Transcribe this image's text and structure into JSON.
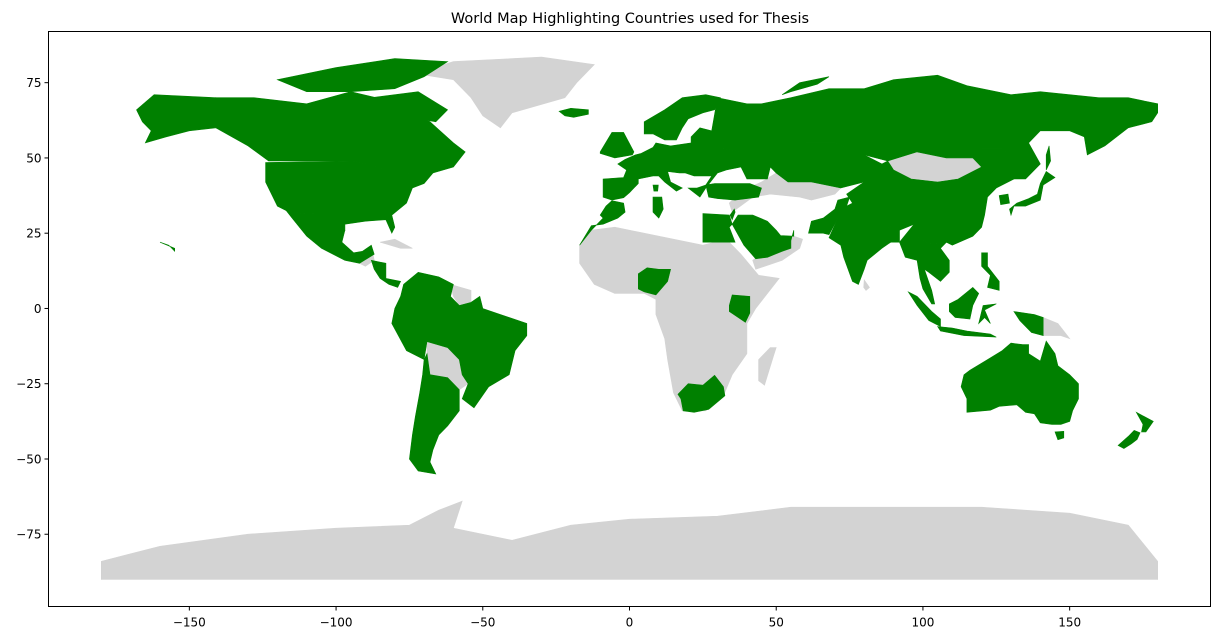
{
  "chart_data": {
    "type": "choropleth-map",
    "title": "World Map Highlighting Countries used for Thesis",
    "xlabel": "",
    "ylabel": "",
    "xlim": [
      -198,
      198
    ],
    "ylim": [
      -99,
      92
    ],
    "xticks": [
      -150,
      -100,
      -50,
      0,
      50,
      100,
      150
    ],
    "yticks": [
      75,
      50,
      25,
      0,
      -25,
      -50,
      -75
    ],
    "grid": false,
    "legend": "none",
    "highlight_color": "#008000",
    "base_color": "#d3d3d3",
    "highlighted_countries": [
      "Canada",
      "United States of America",
      "Mexico",
      "Honduras",
      "Nicaragua",
      "Costa Rica",
      "Panama",
      "Colombia",
      "Venezuela",
      "Ecuador",
      "Peru",
      "Brazil",
      "Chile",
      "Argentina",
      "Uruguay",
      "United Kingdom",
      "Ireland",
      "Iceland",
      "Norway",
      "Sweden",
      "Finland",
      "Estonia",
      "Latvia",
      "Lithuania",
      "Denmark",
      "Germany",
      "Poland",
      "Netherlands",
      "Belgium",
      "France",
      "Spain",
      "Portugal",
      "Italy",
      "Switzerland",
      "Austria",
      "Czechia",
      "Slovakia",
      "Hungary",
      "Romania",
      "Bulgaria",
      "Greece",
      "Ukraine",
      "Russia",
      "Turkey",
      "Morocco",
      "Tunisia",
      "Egypt",
      "Israel",
      "Saudi Arabia",
      "United Arab Emirates",
      "Qatar",
      "Kazakhstan",
      "Pakistan",
      "India",
      "Nepal",
      "Bangladesh",
      "China",
      "Myanmar",
      "Thailand",
      "Vietnam",
      "Malaysia",
      "Indonesia",
      "Philippines",
      "Japan",
      "South Korea",
      "Nigeria",
      "Kenya",
      "South Africa",
      "Australia",
      "New Zealand"
    ]
  }
}
